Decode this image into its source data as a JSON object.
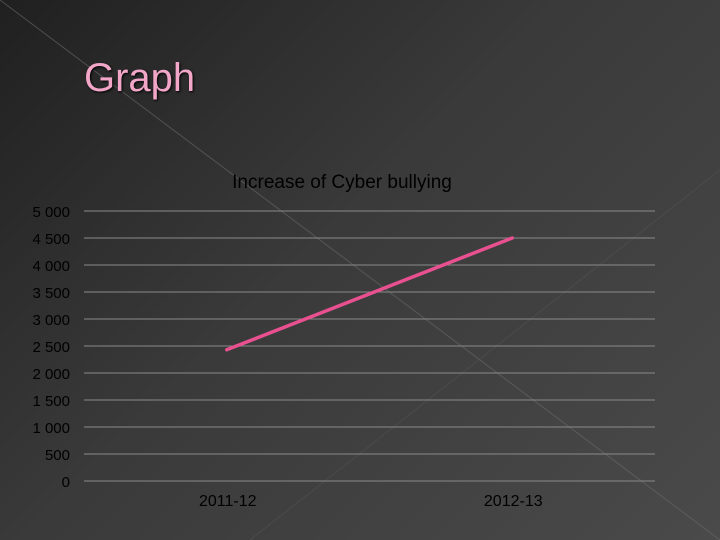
{
  "slide": {
    "title": "Graph"
  },
  "colors": {
    "series": "#e8508f",
    "grid": "#8a8a8a",
    "text": "#000000"
  },
  "chart_data": {
    "type": "line",
    "title": "Increase of Cyber bullying",
    "categories": [
      "2011-12",
      "2012-13"
    ],
    "series": [
      {
        "values": [
          2430,
          4500
        ]
      }
    ],
    "ylim": [
      0,
      5000
    ],
    "yticks": [
      0,
      500,
      1000,
      1500,
      2000,
      2500,
      3000,
      3500,
      4000,
      4500,
      5000
    ],
    "ytick_labels": [
      "0",
      "500",
      "1 000",
      "1 500",
      "2 000",
      "2 500",
      "3 000",
      "3 500",
      "4 000",
      "4 500",
      "5 000"
    ],
    "grid": true,
    "legend": false
  }
}
